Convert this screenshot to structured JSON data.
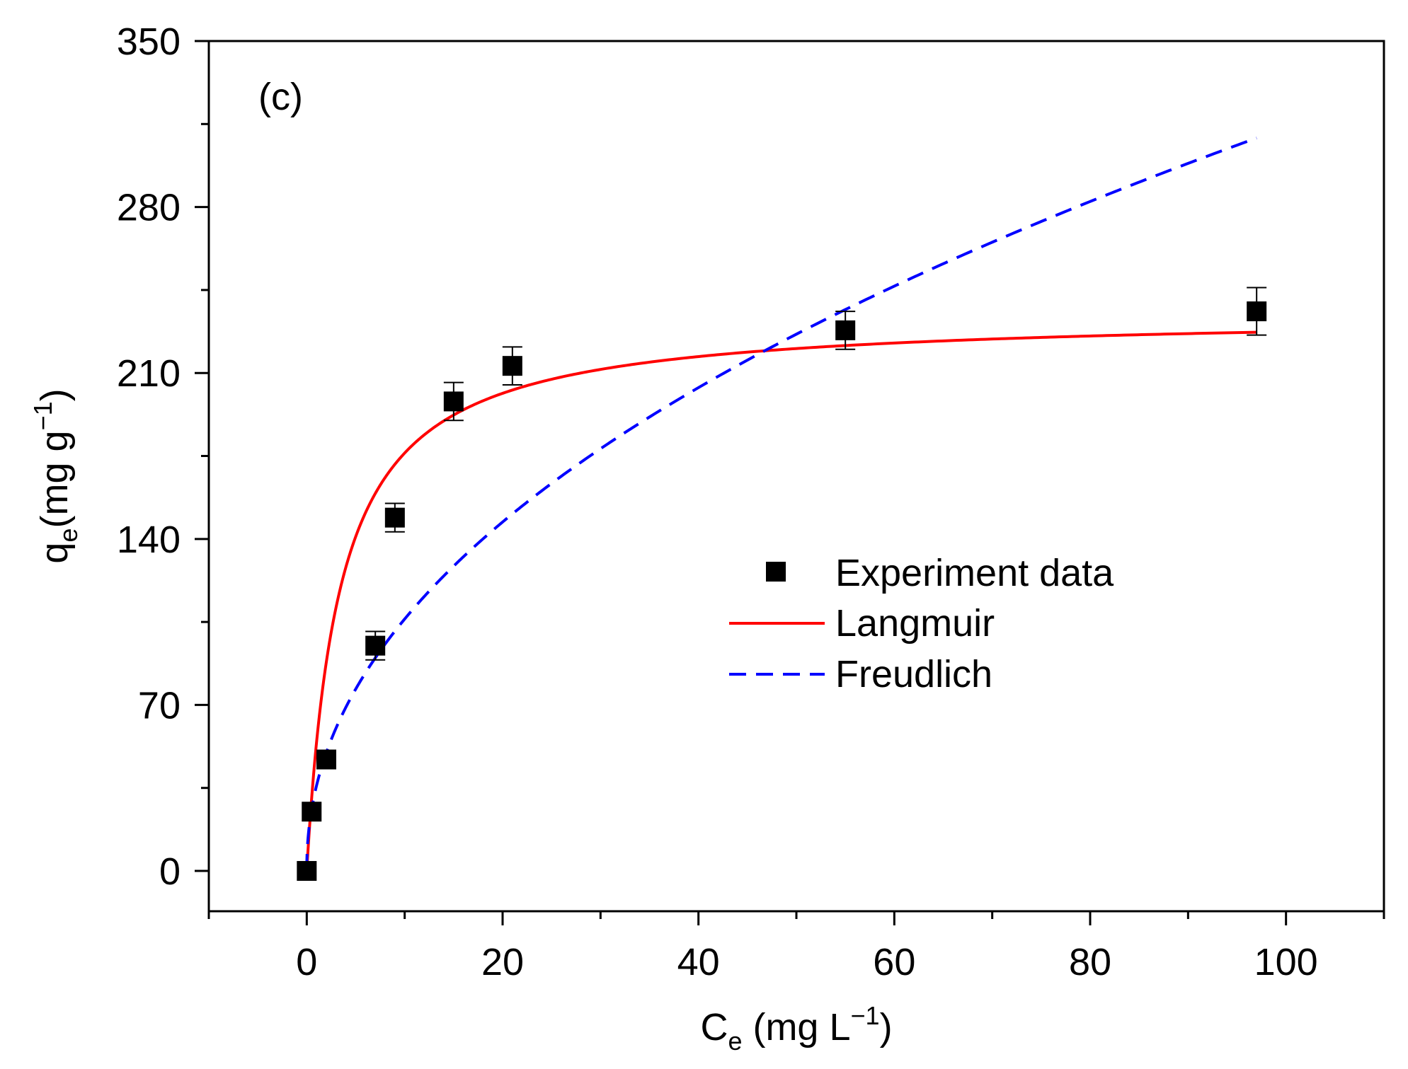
{
  "chart_data": {
    "type": "scatter",
    "panel_label": "(c)",
    "xlabel": {
      "main": "C",
      "sub": "e",
      "unit_pre": " (mg L",
      "sup": "−1",
      "unit_post": ")"
    },
    "ylabel": {
      "main": "q",
      "sub": "e",
      "unit_pre": "(mg g",
      "sup": "−1",
      "unit_post": ")"
    },
    "xlim": [
      -10,
      110
    ],
    "ylim": [
      -17,
      350
    ],
    "xticks": [
      0,
      20,
      40,
      60,
      80,
      100
    ],
    "xtick_labels": [
      "0",
      "20",
      "40",
      "60",
      "80",
      "100"
    ],
    "yticks": [
      0,
      70,
      140,
      210,
      280,
      350
    ],
    "ytick_labels": [
      "0",
      "70",
      "140",
      "210",
      "280",
      "350"
    ],
    "grid": false,
    "legend_position": "center-right",
    "series": [
      {
        "name": "Experiment data",
        "kind": "scatter",
        "color": "#000000",
        "x": [
          0,
          0.5,
          2,
          7,
          9,
          15,
          21,
          55,
          97
        ],
        "y": [
          0,
          25,
          47,
          95,
          149,
          198,
          213,
          228,
          236
        ],
        "err": [
          0,
          0,
          0,
          6,
          6,
          8,
          8,
          8,
          10
        ]
      },
      {
        "name": "Langmuir",
        "kind": "line",
        "color": "#ff0000",
        "dash": "solid",
        "model": {
          "equation": "qmax*KL*x/(1+KL*x)",
          "qmax": 235,
          "KL": 0.3
        },
        "x_range": [
          0,
          97
        ]
      },
      {
        "name": "Freudlich",
        "kind": "line",
        "color": "#0000ff",
        "dash": "dashed",
        "model": {
          "equation": "KF*x^(1/n)",
          "KF": 36,
          "inv_n": 0.47
        },
        "x_range": [
          0,
          97
        ]
      }
    ]
  }
}
